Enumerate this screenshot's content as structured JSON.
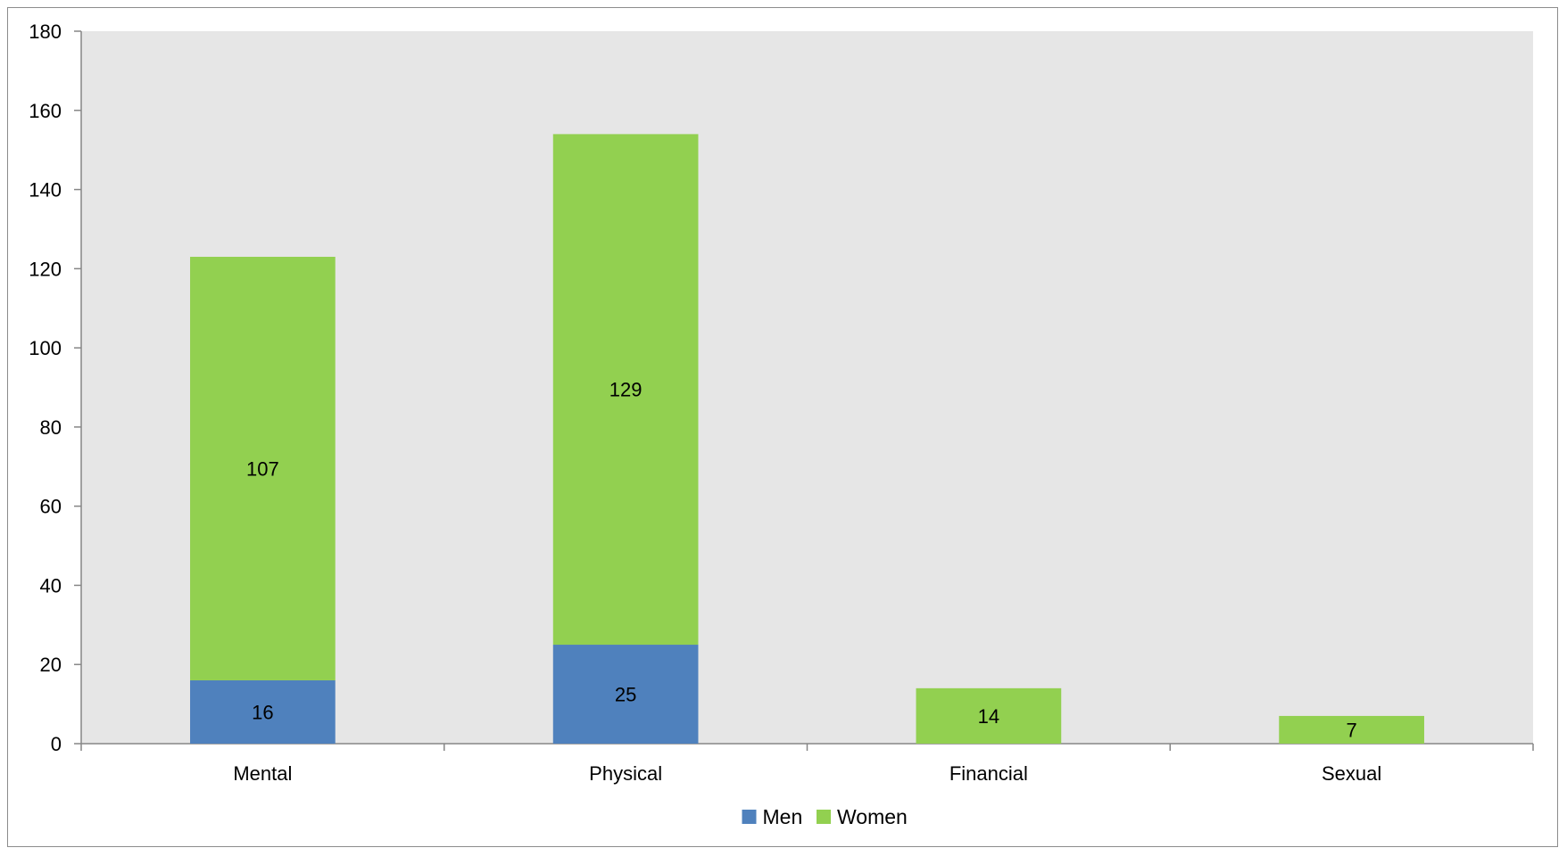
{
  "chart_data": {
    "type": "bar",
    "stacked": true,
    "categories": [
      "Mental",
      "Physical",
      "Financial",
      "Sexual"
    ],
    "series": [
      {
        "name": "Men",
        "values": [
          16,
          25,
          0,
          0
        ],
        "color": "#4F81BD",
        "labels": [
          "16",
          "25",
          "",
          ""
        ]
      },
      {
        "name": "Women",
        "values": [
          107,
          129,
          14,
          7
        ],
        "color": "#92D050",
        "labels": [
          "107",
          "129",
          "14",
          "7"
        ]
      }
    ],
    "title": "",
    "xlabel": "",
    "ylabel": "",
    "ylim": [
      0,
      180
    ],
    "yticks": [
      0,
      20,
      40,
      60,
      80,
      100,
      120,
      140,
      160,
      180
    ],
    "grid": false,
    "plot_background": "#E6E6E6",
    "legend_position": "bottom"
  }
}
